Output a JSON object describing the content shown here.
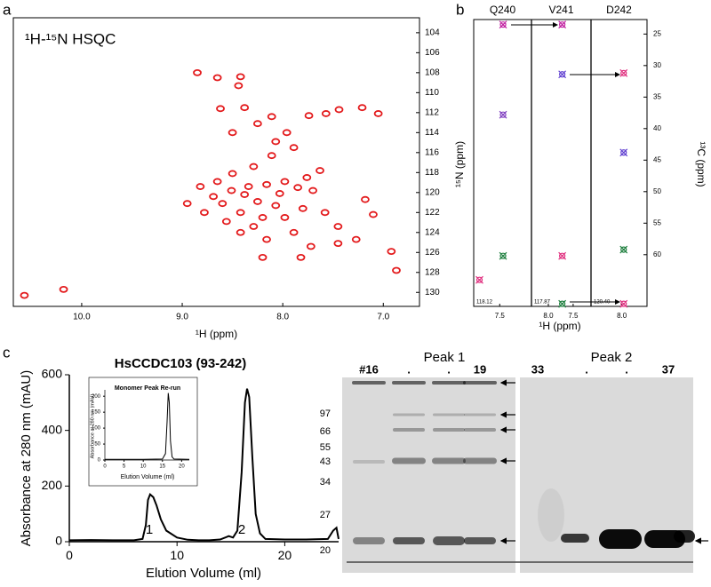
{
  "panel_labels": [
    "a",
    "b",
    "c"
  ],
  "chart_data": [
    {
      "type": "scatter",
      "title": "¹H-¹⁵N HSQC",
      "xlabel": "¹H (ppm)",
      "color": "#e31a1c",
      "xlim": [
        10.68,
        6.64
      ],
      "xticks": [
        {
          "value": 10,
          "label": "10.0"
        },
        {
          "value": 9,
          "label": "9.0"
        },
        {
          "value": 8,
          "label": "8.0"
        },
        {
          "value": 7,
          "label": "7.0"
        }
      ],
      "ylim": [
        102.5,
        131.4
      ],
      "yticks": [
        104,
        106,
        108,
        110,
        112,
        114,
        116,
        118,
        120,
        122,
        124,
        126,
        128,
        130
      ],
      "x": [
        10.57,
        10.18,
        8.85,
        8.44,
        8.65,
        8.42,
        8.62,
        8.38,
        8.11,
        7.74,
        7.57,
        7.44,
        7.21,
        7.05,
        7.96,
        7.89,
        8.11,
        8.29,
        8.5,
        8.65,
        8.82,
        8.95,
        8.69,
        8.51,
        8.34,
        8.16,
        7.98,
        7.76,
        7.63,
        8.25,
        8.07,
        8.42,
        8.56,
        8.29,
        7.98,
        7.8,
        7.58,
        8.16,
        7.89,
        7.72,
        7.45,
        8.2,
        7.45,
        7.1,
        7.27,
        6.92,
        8.78,
        8.6,
        8.38,
        8.2,
        8.03,
        7.85,
        7.7,
        8.42,
        7.82,
        8.07,
        8.25,
        8.5,
        7.18,
        6.87
      ],
      "y": [
        130.3,
        129.7,
        108.0,
        109.3,
        108.5,
        108.4,
        111.6,
        111.5,
        112.4,
        112.3,
        112.1,
        111.7,
        111.5,
        112.1,
        114.0,
        115.5,
        116.3,
        117.4,
        118.1,
        118.9,
        119.4,
        121.1,
        120.4,
        119.8,
        119.4,
        119.2,
        118.9,
        118.5,
        117.8,
        120.9,
        121.3,
        122.0,
        122.9,
        123.4,
        122.5,
        121.6,
        122.0,
        124.7,
        124.0,
        125.4,
        125.1,
        126.5,
        123.4,
        122.2,
        124.7,
        125.9,
        122.0,
        121.1,
        120.2,
        122.5,
        120.1,
        119.5,
        119.8,
        124.0,
        126.5,
        114.9,
        113.1,
        114.0,
        120.7,
        127.8
      ]
    },
    {
      "type": "line",
      "title": "HsCCDC103 (93-242)",
      "xlabel": "Elution Volume (ml)",
      "ylabel": "Absorbance at 280 nm (mAU)",
      "color": "#000000",
      "xlim": [
        0,
        25
      ],
      "xticks": [
        0,
        10,
        20
      ],
      "ylim": [
        0,
        600
      ],
      "yticks": [
        0,
        200,
        400,
        600
      ],
      "annotations": [
        "1",
        "2"
      ],
      "x": [
        0,
        2,
        4,
        6,
        6.8,
        7.1,
        7.3,
        7.5,
        7.8,
        8.1,
        8.5,
        9,
        10,
        11,
        12,
        13,
        14,
        14.8,
        15.2,
        15.6,
        16,
        16.3,
        16.5,
        16.7,
        17,
        17.3,
        17.7,
        18.2,
        20,
        22,
        24,
        24.5,
        24.8,
        25
      ],
      "values": [
        5,
        6,
        5,
        5,
        10,
        60,
        150,
        170,
        160,
        130,
        80,
        40,
        15,
        7,
        5,
        5,
        8,
        20,
        15,
        40,
        250,
        500,
        550,
        520,
        300,
        100,
        30,
        10,
        8,
        8,
        10,
        40,
        50,
        10
      ]
    },
    {
      "type": "line",
      "title": "Monomer Peak Re-run",
      "xlabel": "Elution Volume (ml)",
      "ylabel": "Absorbance at 280 nm (mAU)",
      "color": "#000000",
      "xlim": [
        0,
        22
      ],
      "xticks": [
        0,
        5,
        10,
        15,
        20
      ],
      "ylim": [
        0,
        220
      ],
      "yticks": [
        0,
        50,
        100,
        150,
        200
      ],
      "x": [
        0,
        10,
        15,
        15.8,
        16.2,
        16.5,
        16.8,
        17.1,
        17.5,
        18,
        22
      ],
      "values": [
        2,
        2,
        3,
        20,
        120,
        210,
        180,
        60,
        10,
        3,
        2
      ]
    }
  ],
  "strip_plot": {
    "xlabel": "¹H (ppm)",
    "ylabel_left": "¹⁵N (ppm)",
    "ylabel_right": "¹³C (ppm)",
    "ylim": [
      22.7,
      68.2
    ],
    "yticks": [
      25,
      30,
      35,
      40,
      45,
      50,
      55,
      60
    ],
    "strips": [
      {
        "label": "Q240",
        "n15": "118.12",
        "xlim": [
          8.04,
          6.84
        ],
        "xticks": [
          7.5
        ],
        "x": [
          7.43,
          7.43,
          7.43,
          7.92
        ],
        "y": [
          23.5,
          37.8,
          60.2,
          64.0
        ],
        "colors": [
          "#c020a0",
          "#8040c0",
          "#208040",
          "#e0307f"
        ]
      },
      {
        "label": "V241",
        "n15": "117.87",
        "xlim": [
          8.34,
          7.14
        ],
        "xticks": [
          {
            "value": 8,
            "label": "8.0"
          },
          7.5
        ],
        "x": [
          7.72,
          7.72,
          7.72,
          7.72
        ],
        "y": [
          23.5,
          31.4,
          60.2,
          67.8
        ],
        "colors": [
          "#c020a0",
          "#6040d0",
          "#e0307f",
          "#208040"
        ]
      },
      {
        "label": "D242",
        "n15": "120.40",
        "xlim": [
          8.66,
          7.46
        ],
        "xticks": [
          {
            "value": 8,
            "label": "8.0"
          }
        ],
        "x": [
          7.96,
          7.96,
          7.96,
          7.96
        ],
        "y": [
          31.2,
          43.8,
          59.2,
          67.8
        ],
        "colors": [
          "#e0307f",
          "#6040d0",
          "#208040",
          "#e0307f"
        ]
      }
    ]
  },
  "gel": {
    "markers": [
      97,
      66,
      55,
      43,
      34,
      27,
      20
    ],
    "panels": [
      {
        "title": "Peak 1",
        "lanes": [
          "#16",
          ".",
          ".",
          "19"
        ]
      },
      {
        "title": "Peak 2",
        "lanes": [
          "33",
          ".",
          ".",
          "37"
        ]
      }
    ]
  }
}
